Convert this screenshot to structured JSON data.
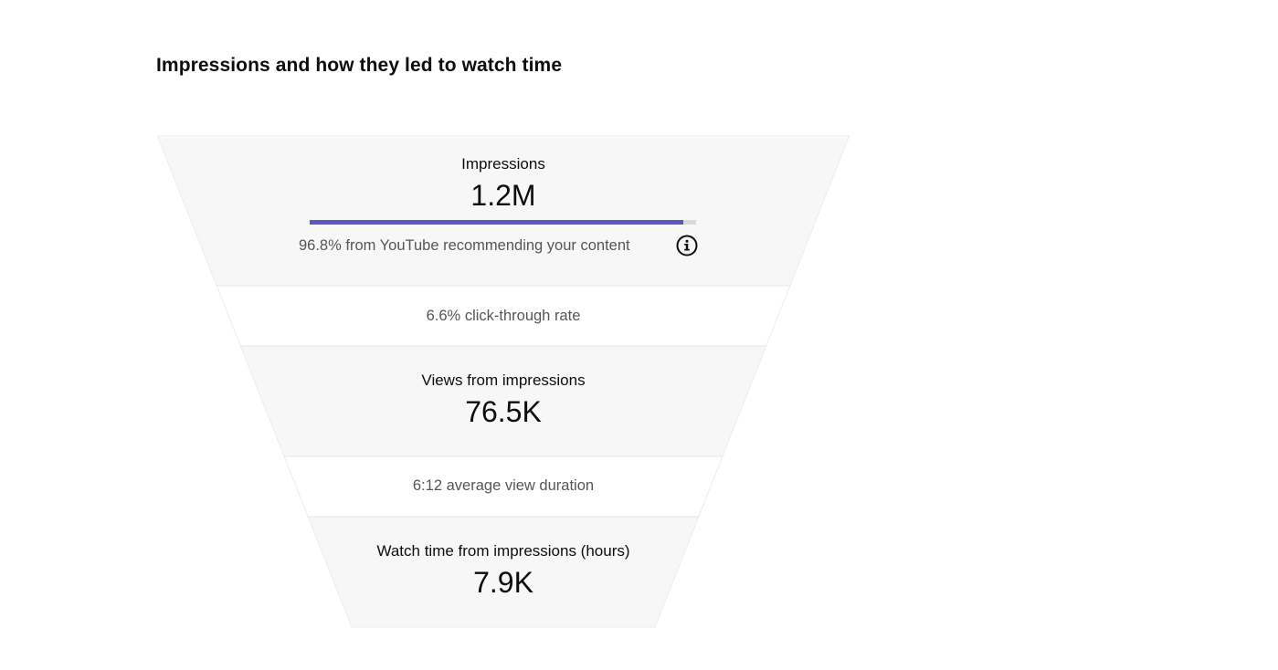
{
  "title": "Impressions and how they led to watch time",
  "funnel": {
    "impressions": {
      "label": "Impressions",
      "value": "1.2M",
      "recommended_share": 0.968,
      "source_text": "96.8% from YouTube recommending your content",
      "info_icon": "info-icon"
    },
    "ctr_text": "6.6% click-through rate",
    "views": {
      "label": "Views from impressions",
      "value": "76.5K"
    },
    "avd_text": "6:12 average view duration",
    "watch_time": {
      "label": "Watch time from impressions (hours)",
      "value": "7.9K"
    }
  },
  "colors": {
    "bar_fill": "#5b55c6",
    "bar_track": "#d9d9d9",
    "stage_fill": "#f7f7f7",
    "ratio_fill": "#ffffff",
    "divider": "#e6e6e6"
  }
}
